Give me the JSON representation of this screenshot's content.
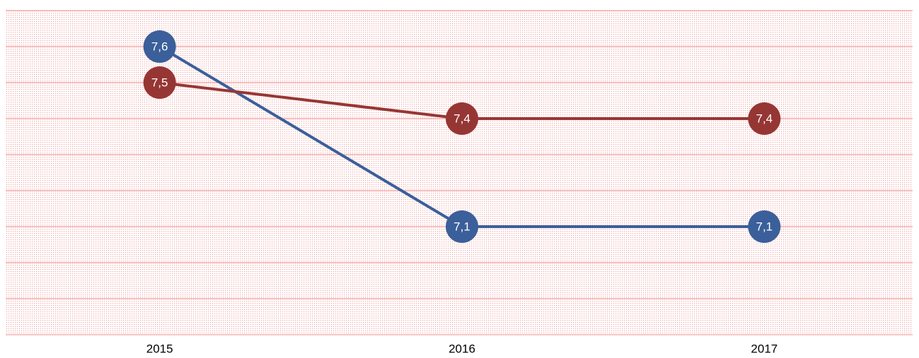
{
  "chart_data": {
    "type": "line",
    "categories": [
      "2015",
      "2016",
      "2017"
    ],
    "series": [
      {
        "name": null,
        "color": "#3a5f9a",
        "values": [
          7.6,
          7.1,
          7.1
        ],
        "value_labels": [
          "7,6",
          "7,1",
          "7,1"
        ]
      },
      {
        "name": null,
        "color": "#963634",
        "values": [
          7.5,
          7.4,
          7.4
        ],
        "value_labels": [
          "7,5",
          "7,4",
          "7,4"
        ]
      }
    ],
    "ylim": [
      6.8,
      7.7
    ],
    "yticks": [
      6.8,
      6.9,
      7.0,
      7.1,
      7.2,
      7.3,
      7.4,
      7.5,
      7.6,
      7.7
    ],
    "grid": true
  }
}
